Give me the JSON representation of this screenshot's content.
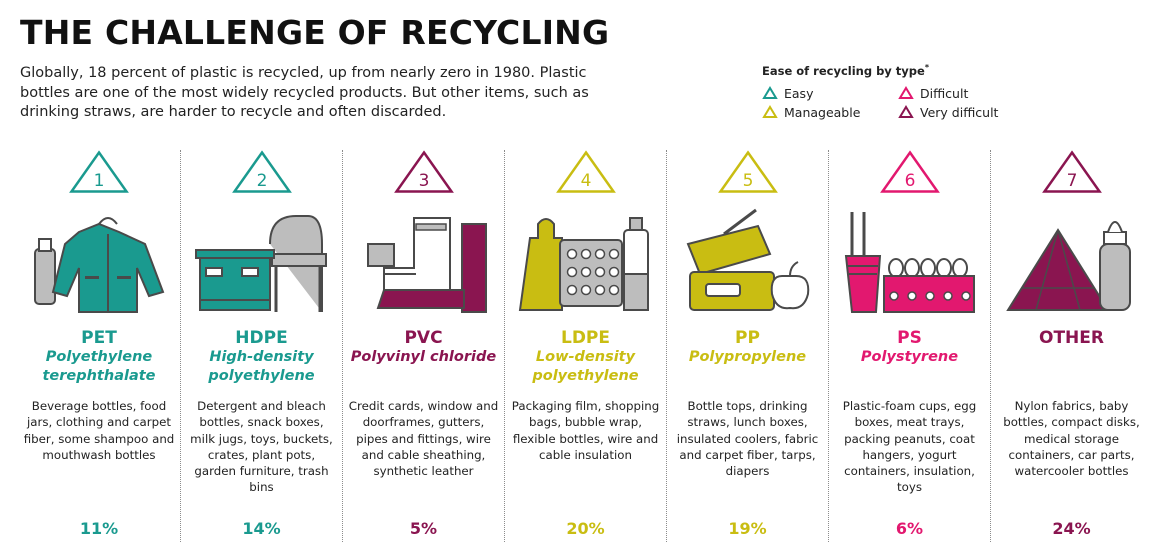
{
  "title": "THE CHALLENGE OF RECYCLING",
  "intro": "Globally, 18 percent of plastic is recycled, up from nearly zero in 1980. Plastic bottles are one of the most widely recycled products. But other items, such as drinking straws, are harder to recycle and often discarded.",
  "legend": {
    "title": "Ease of recycling by type",
    "footnote_mark": "*",
    "items": [
      {
        "label": "Easy",
        "color": "#1a9a8f"
      },
      {
        "label": "Difficult",
        "color": "#e2186f"
      },
      {
        "label": "Manageable",
        "color": "#c9bd12"
      },
      {
        "label": "Very difficult",
        "color": "#8a1550"
      }
    ]
  },
  "plastics": [
    {
      "number": "1",
      "abbr": "PET",
      "full": "Polyethylene terephthalate",
      "uses": "Beverage bottles, food jars, clothing and carpet fiber, some shampoo and mouthwash bottles",
      "percent": "11%",
      "color": "#1a9a8f",
      "icon": "jacket-bottle-icon"
    },
    {
      "number": "2",
      "abbr": "HDPE",
      "full": "High-density polyethylene",
      "uses": "Detergent and bleach bottles, snack boxes, milk jugs, toys, buckets, crates, plant pots, garden furniture, trash bins",
      "percent": "14%",
      "color": "#1a9a8f",
      "icon": "crate-chair-icon"
    },
    {
      "number": "3",
      "abbr": "PVC",
      "full": "Polyvinyl chloride",
      "uses": "Credit cards, window and doorframes, gutters, pipes and fittings, wire and cable sheathing, synthetic leather",
      "percent": "5%",
      "color": "#8a1550",
      "icon": "boot-pipe-icon"
    },
    {
      "number": "4",
      "abbr": "LDPE",
      "full": "Low-density polyethylene",
      "uses": "Packaging film, shopping bags, bubble wrap, flexible bottles, wire and cable insulation",
      "percent": "20%",
      "color": "#c9bd12",
      "icon": "bag-bubblewrap-icon"
    },
    {
      "number": "5",
      "abbr": "PP",
      "full": "Polypropylene",
      "uses": "Bottle tops, drinking straws, lunch boxes, insulated coolers, fabric and carpet fiber, tarps, diapers",
      "percent": "19%",
      "color": "#c9bd12",
      "icon": "lunchbox-straw-icon"
    },
    {
      "number": "6",
      "abbr": "PS",
      "full": "Polystyrene",
      "uses": "Plastic-foam cups, egg boxes, meat trays, packing peanuts, coat hangers, yogurt containers, insulation, toys",
      "percent": "6%",
      "color": "#e2186f",
      "icon": "cup-eggbox-icon"
    },
    {
      "number": "7",
      "abbr": "OTHER",
      "full": "",
      "uses": "Nylon fabrics, baby bottles, compact disks, medical storage containers, car parts, watercooler bottles",
      "percent": "24%",
      "color": "#8a1550",
      "icon": "tent-babybottle-icon"
    }
  ]
}
